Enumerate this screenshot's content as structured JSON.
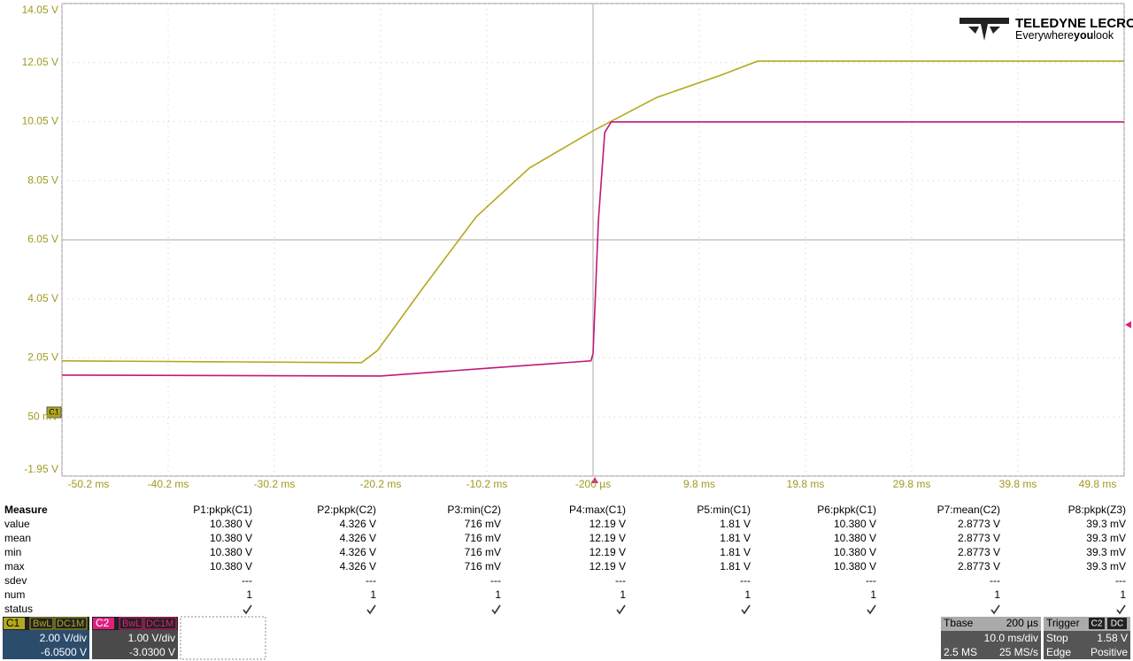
{
  "chart_data": {
    "type": "line",
    "xlim": [
      -50.2,
      49.8
    ],
    "ylim": [
      -1.95,
      14.05
    ],
    "xticks": [
      {
        "value": -50.2,
        "label": "-50.2 ms"
      },
      {
        "value": -40.2,
        "label": "-40.2 ms"
      },
      {
        "value": -30.2,
        "label": "-30.2 ms"
      },
      {
        "value": -20.2,
        "label": "-20.2 ms"
      },
      {
        "value": -10.2,
        "label": "-10.2 ms"
      },
      {
        "value": -0.2,
        "label": "-200 µs"
      },
      {
        "value": 9.8,
        "label": "9.8 ms"
      },
      {
        "value": 19.8,
        "label": "19.8 ms"
      },
      {
        "value": 29.8,
        "label": "29.8 ms"
      },
      {
        "value": 39.8,
        "label": "39.8 ms"
      },
      {
        "value": 49.8,
        "label": "49.8 ms"
      }
    ],
    "yticks": [
      {
        "value": 14.05,
        "label": "14.05 V"
      },
      {
        "value": 12.05,
        "label": "12.05 V"
      },
      {
        "value": 10.05,
        "label": "10.05 V"
      },
      {
        "value": 8.05,
        "label": "8.05 V"
      },
      {
        "value": 6.05,
        "label": "6.05 V"
      },
      {
        "value": 4.05,
        "label": "4.05 V"
      },
      {
        "value": 2.05,
        "label": "2.05 V"
      },
      {
        "value": 0.05,
        "label": "50 mV"
      },
      {
        "value": -1.95,
        "label": "-1.95 V"
      }
    ],
    "grid": true,
    "tick_color": "#a09a20",
    "series": [
      {
        "name": "C1",
        "color": "#b3a91c",
        "x": [
          -50.2,
          -22.0,
          -20.5,
          -16.2,
          -11.2,
          -6.2,
          -0.2,
          5.8,
          11.8,
          15.3,
          49.8
        ],
        "values": [
          1.95,
          1.89,
          2.3,
          4.43,
          6.83,
          8.48,
          9.74,
          10.87,
          11.62,
          12.1,
          12.1
        ]
      },
      {
        "name": "C2",
        "color": "#c0187a",
        "x": [
          -50.2,
          -20.2,
          -10.2,
          -0.4,
          -0.2,
          0.3,
          0.9,
          1.5,
          49.8
        ],
        "values": [
          1.47,
          1.44,
          1.7,
          1.95,
          2.2,
          6.68,
          9.68,
          10.04,
          10.04
        ]
      }
    ]
  },
  "logo": {
    "brand": "TELEDYNE LECROY",
    "tag_a": "Everywhere",
    "tag_b": "you",
    "tag_c": "look"
  },
  "ground_marker": "C1",
  "measure": {
    "title": "Measure",
    "columns": [
      "P1:pkpk(C1)",
      "P2:pkpk(C2)",
      "P3:min(C2)",
      "P4:max(C1)",
      "P5:min(C1)",
      "P6:pkpk(C1)",
      "P7:mean(C2)",
      "P8:pkpk(Z3)"
    ],
    "rows": [
      {
        "label": "value",
        "cells": [
          "10.380 V",
          "4.326 V",
          "716 mV",
          "12.19 V",
          "1.81 V",
          "10.380 V",
          "2.8773 V",
          "39.3 mV"
        ]
      },
      {
        "label": "mean",
        "cells": [
          "10.380 V",
          "4.326 V",
          "716 mV",
          "12.19 V",
          "1.81 V",
          "10.380 V",
          "2.8773 V",
          "39.3 mV"
        ]
      },
      {
        "label": "min",
        "cells": [
          "10.380 V",
          "4.326 V",
          "716 mV",
          "12.19 V",
          "1.81 V",
          "10.380 V",
          "2.8773 V",
          "39.3 mV"
        ]
      },
      {
        "label": "max",
        "cells": [
          "10.380 V",
          "4.326 V",
          "716 mV",
          "12.19 V",
          "1.81 V",
          "10.380 V",
          "2.8773 V",
          "39.3 mV"
        ]
      },
      {
        "label": "sdev",
        "cells": [
          "---",
          "---",
          "---",
          "---",
          "---",
          "---",
          "---",
          "---"
        ]
      },
      {
        "label": "num",
        "cells": [
          "1",
          "1",
          "1",
          "1",
          "1",
          "1",
          "1",
          "1"
        ]
      },
      {
        "label": "status"
      }
    ]
  },
  "channels": [
    {
      "name": "C1",
      "bw": "BwL",
      "coupling": "DC1M",
      "scale": "2.00 V/div",
      "offset": "-6.0500 V"
    },
    {
      "name": "C2",
      "bw": "BwL",
      "coupling": "DC1M",
      "scale": "1.00 V/div",
      "offset": "-3.0300 V"
    }
  ],
  "timebase": {
    "title": "Tbase",
    "delay": "200 µs",
    "scale": "10.0 ms/div",
    "points": "2.5 MS",
    "rate": "25 MS/s"
  },
  "trigger": {
    "title": "Trigger",
    "source": "C2",
    "coupling": "DC",
    "mode": "Stop",
    "level": "1.58 V",
    "type": "Edge",
    "slope": "Positive"
  }
}
